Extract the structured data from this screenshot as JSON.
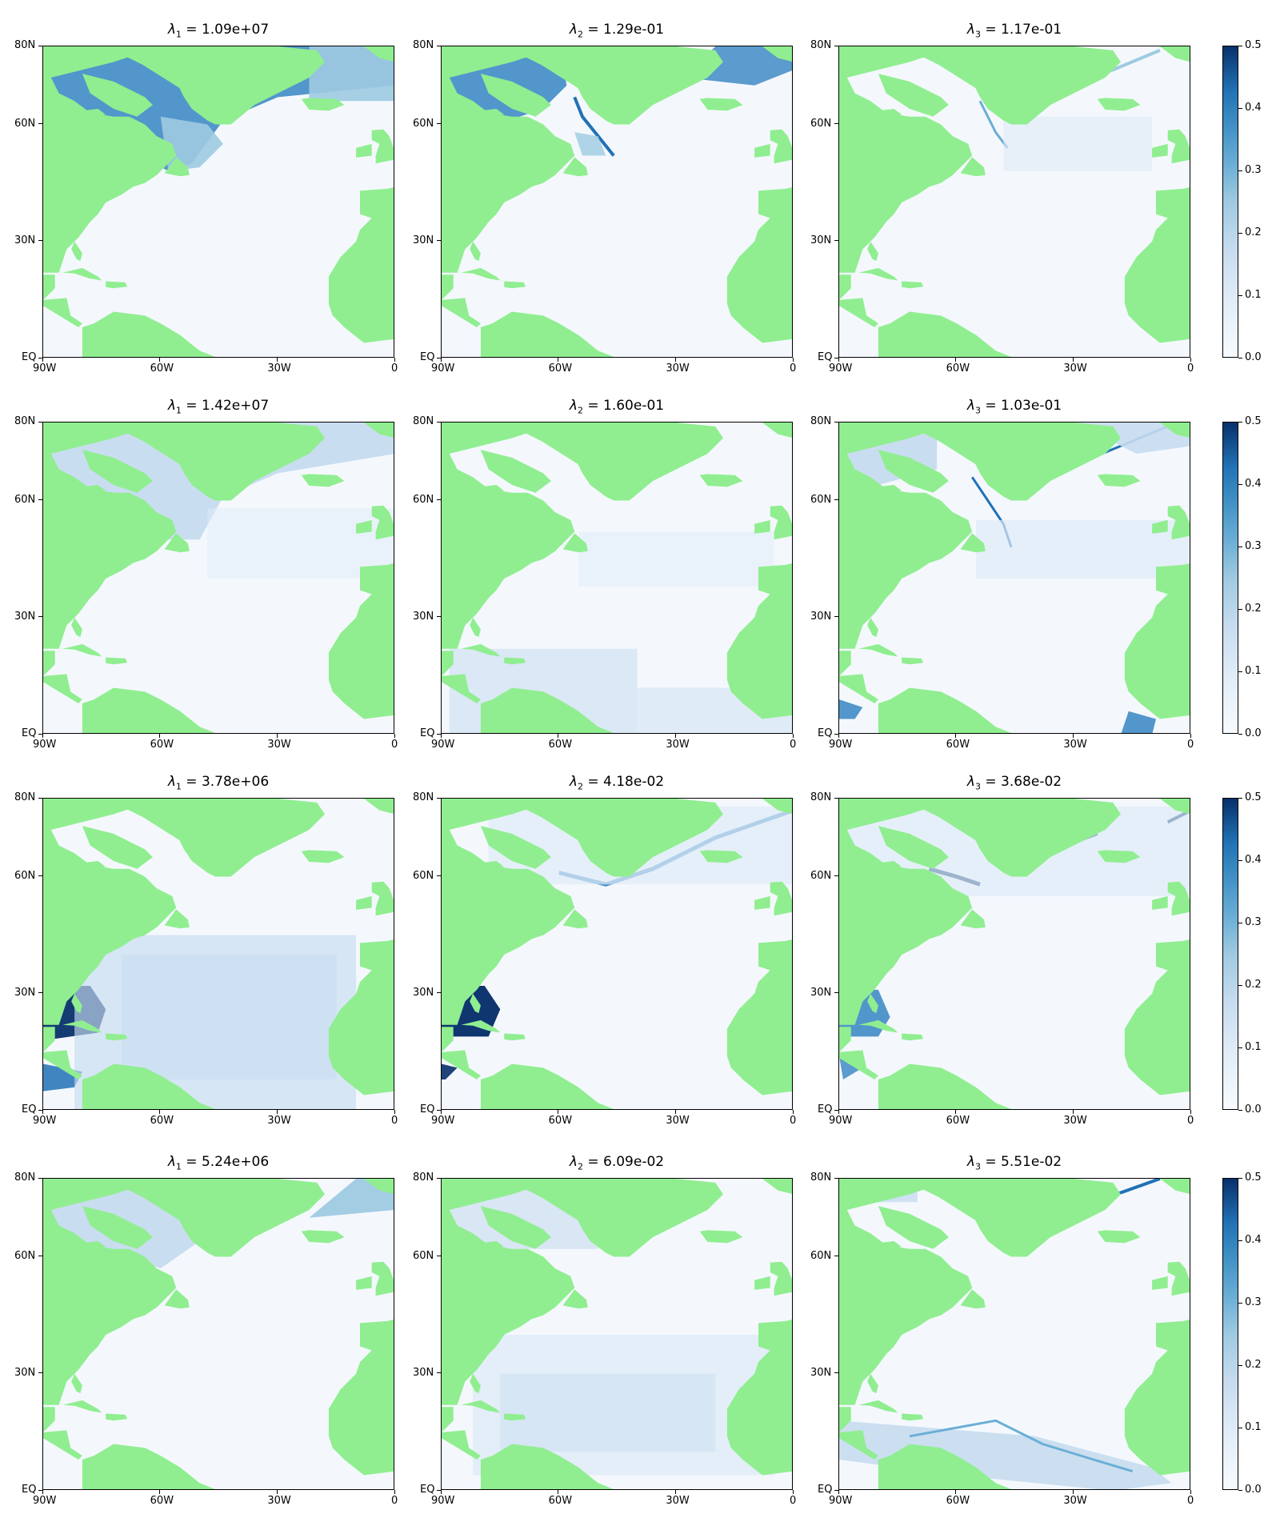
{
  "chart_data": [
    {
      "type": "heatmap",
      "title_symbol": "λ",
      "title_sub": "1",
      "title_value": "= 1.09e+07",
      "pattern": "polar_strong",
      "xticks": [
        "90W",
        "60W",
        "30W",
        "0"
      ],
      "yticks": [
        "EQ",
        "30N",
        "60N",
        "80N"
      ]
    },
    {
      "type": "heatmap",
      "title_symbol": "λ",
      "title_sub": "2",
      "title_value": "= 1.29e-01",
      "pattern": "polar_strong_labrador",
      "xticks": [
        "90W",
        "60W",
        "30W",
        "0"
      ],
      "yticks": [
        "EQ",
        "30N",
        "60N",
        "80N"
      ]
    },
    {
      "type": "heatmap",
      "title_symbol": "λ",
      "title_sub": "3",
      "title_value": "= 1.17e-01",
      "pattern": "coastal_faint",
      "xticks": [
        "90W",
        "60W",
        "30W",
        "0"
      ],
      "yticks": [
        "EQ",
        "30N",
        "60N",
        "80N"
      ]
    },
    {
      "type": "heatmap",
      "title_symbol": "λ",
      "title_sub": "1",
      "title_value": "= 1.42e+07",
      "pattern": "polar_light",
      "xticks": [
        "90W",
        "60W",
        "30W",
        "0"
      ],
      "yticks": [
        "EQ",
        "30N",
        "60N",
        "80N"
      ]
    },
    {
      "type": "heatmap",
      "title_symbol": "λ",
      "title_sub": "2",
      "title_value": "= 1.60e-01",
      "pattern": "tropical_faint",
      "xticks": [
        "90W",
        "60W",
        "30W",
        "0"
      ],
      "yticks": [
        "EQ",
        "30N",
        "60N",
        "80N"
      ]
    },
    {
      "type": "heatmap",
      "title_symbol": "λ",
      "title_sub": "3",
      "title_value": "= 1.03e-01",
      "pattern": "coastal_strong",
      "xticks": [
        "90W",
        "60W",
        "30W",
        "0"
      ],
      "yticks": [
        "EQ",
        "30N",
        "60N",
        "80N"
      ]
    },
    {
      "type": "heatmap",
      "title_symbol": "λ",
      "title_sub": "1",
      "title_value": "= 3.78e+06",
      "pattern": "caribbean_strong",
      "xticks": [
        "90W",
        "60W",
        "30W",
        "0"
      ],
      "yticks": [
        "EQ",
        "30N",
        "60N",
        "80N"
      ]
    },
    {
      "type": "heatmap",
      "title_symbol": "λ",
      "title_sub": "2",
      "title_value": "= 4.18e-02",
      "pattern": "caribbean_strong_north",
      "xticks": [
        "90W",
        "60W",
        "30W",
        "0"
      ],
      "yticks": [
        "EQ",
        "30N",
        "60N",
        "80N"
      ]
    },
    {
      "type": "heatmap",
      "title_symbol": "λ",
      "title_sub": "3",
      "title_value": "= 3.68e-02",
      "pattern": "caribbean_medium_north",
      "xticks": [
        "90W",
        "60W",
        "30W",
        "0"
      ],
      "yticks": [
        "EQ",
        "30N",
        "60N",
        "80N"
      ]
    },
    {
      "type": "heatmap",
      "title_symbol": "λ",
      "title_sub": "1",
      "title_value": "= 5.24e+06",
      "pattern": "polar_medium",
      "xticks": [
        "90W",
        "60W",
        "30W",
        "0"
      ],
      "yticks": [
        "EQ",
        "30N",
        "60N",
        "80N"
      ]
    },
    {
      "type": "heatmap",
      "title_symbol": "λ",
      "title_sub": "2",
      "title_value": "= 6.09e-02",
      "pattern": "tropical_light",
      "xticks": [
        "90W",
        "60W",
        "30W",
        "0"
      ],
      "yticks": [
        "EQ",
        "30N",
        "60N",
        "80N"
      ]
    },
    {
      "type": "heatmap",
      "title_symbol": "λ",
      "title_sub": "3",
      "title_value": "= 5.51e-02",
      "pattern": "equatorial_band",
      "xticks": [
        "90W",
        "60W",
        "30W",
        "0"
      ],
      "yticks": [
        "EQ",
        "30N",
        "60N",
        "80N"
      ]
    }
  ],
  "colorbar": {
    "ticks": [
      "0.0",
      "0.1",
      "0.2",
      "0.3",
      "0.4",
      "0.5"
    ],
    "range": [
      0,
      0.5
    ],
    "colormap": "Blues"
  },
  "colors": {
    "land": "#90ee90",
    "ocean_base": "#f4f8fd",
    "frame": "#000000"
  }
}
